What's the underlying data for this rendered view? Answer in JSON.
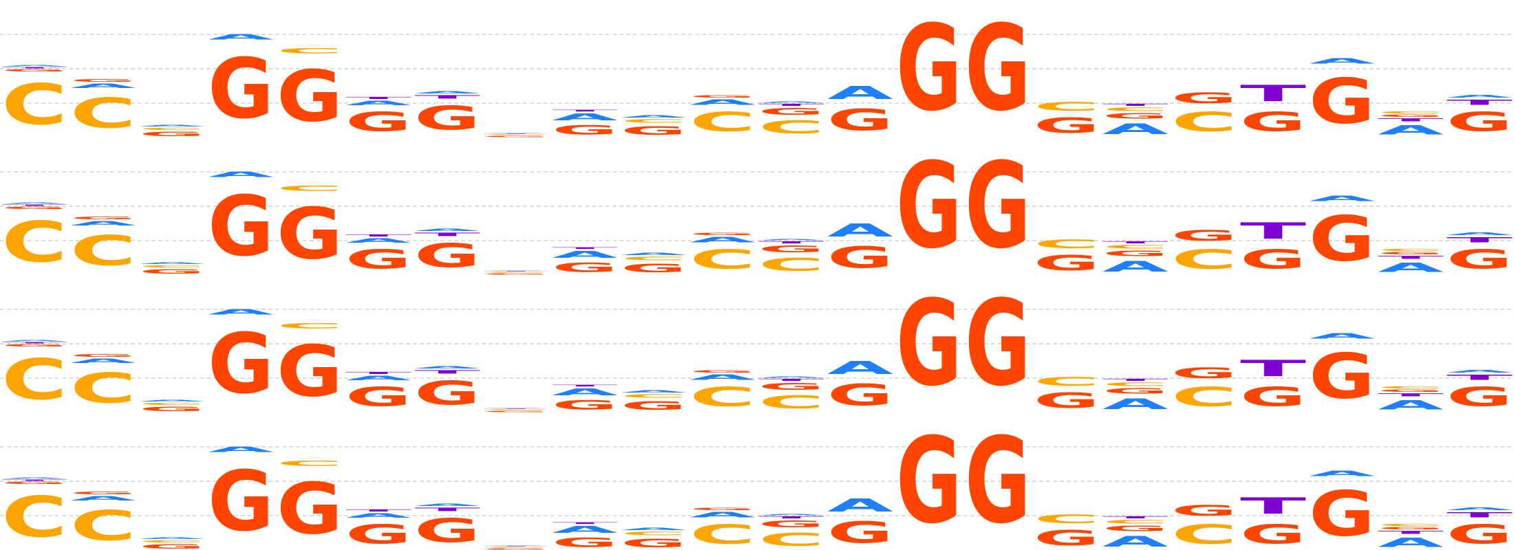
{
  "colors": {
    "A": "#1E7FFF",
    "C": "#FFA500",
    "G": "#FF4500",
    "T": "#7F00D4",
    "gridline": "#bbbbbb"
  },
  "logo_rows": 4,
  "chart_data": {
    "type": "sequence-logo",
    "title": "",
    "xlabel": "",
    "ylabel": "",
    "ylim": [
      0,
      2
    ],
    "grid": true,
    "positions": [
      [
        {
          "base": "C",
          "bits": 0.95
        },
        {
          "base": "G",
          "bits": 0.05
        },
        {
          "base": "T",
          "bits": 0.03
        },
        {
          "base": "A",
          "bits": 0.03
        }
      ],
      [
        {
          "base": "C",
          "bits": 0.7
        },
        {
          "base": "A",
          "bits": 0.1
        },
        {
          "base": "G",
          "bits": 0.06
        }
      ],
      [
        {
          "base": "G",
          "bits": 0.1
        },
        {
          "base": "C",
          "bits": 0.05
        },
        {
          "base": "A",
          "bits": 0.04
        }
      ],
      [
        {
          "base": "G",
          "bits": 1.4
        },
        {
          "base": "A",
          "bits": 0.12
        }
      ],
      [
        {
          "base": "G",
          "bits": 1.2
        },
        {
          "base": "C",
          "bits": 0.12
        }
      ],
      [
        {
          "base": "G",
          "bits": 0.45
        },
        {
          "base": "A",
          "bits": 0.1
        },
        {
          "base": "T",
          "bits": 0.05
        }
      ],
      [
        {
          "base": "G",
          "bits": 0.55
        },
        {
          "base": "T",
          "bits": 0.08
        },
        {
          "base": "A",
          "bits": 0.05
        }
      ],
      [
        {
          "base": "G",
          "bits": 0.03
        },
        {
          "base": "C",
          "bits": 0.02
        },
        {
          "base": "T",
          "bits": 0.01
        },
        {
          "base": "A",
          "bits": 0.01
        }
      ],
      [
        {
          "base": "G",
          "bits": 0.22
        },
        {
          "base": "A",
          "bits": 0.15
        },
        {
          "base": "T",
          "bits": 0.04
        }
      ],
      [
        {
          "base": "G",
          "bits": 0.2
        },
        {
          "base": "C",
          "bits": 0.08
        },
        {
          "base": "A",
          "bits": 0.05
        }
      ],
      [
        {
          "base": "C",
          "bits": 0.45
        },
        {
          "base": "A",
          "bits": 0.12
        },
        {
          "base": "G",
          "bits": 0.05
        }
      ],
      [
        {
          "base": "C",
          "bits": 0.3
        },
        {
          "base": "G",
          "bits": 0.15
        },
        {
          "base": "T",
          "bits": 0.05
        },
        {
          "base": "A",
          "bits": 0.03
        }
      ],
      [
        {
          "base": "G",
          "bits": 0.5
        },
        {
          "base": "A",
          "bits": 0.3
        }
      ],
      [
        {
          "base": "G",
          "bits": 2.0
        }
      ],
      [
        {
          "base": "G",
          "bits": 2.0
        }
      ],
      [
        {
          "base": "G",
          "bits": 0.35
        },
        {
          "base": "C",
          "bits": 0.2
        }
      ],
      [
        {
          "base": "A",
          "bits": 0.25
        },
        {
          "base": "G",
          "bits": 0.12
        },
        {
          "base": "C",
          "bits": 0.08
        },
        {
          "base": "T",
          "bits": 0.05
        }
      ],
      [
        {
          "base": "C",
          "bits": 0.45
        },
        {
          "base": "G",
          "bits": 0.25
        }
      ],
      [
        {
          "base": "G",
          "bits": 0.45
        },
        {
          "base": "T",
          "bits": 0.38
        }
      ],
      [
        {
          "base": "G",
          "bits": 1.05
        },
        {
          "base": "A",
          "bits": 0.12
        }
      ],
      [
        {
          "base": "A",
          "bits": 0.22
        },
        {
          "base": "T",
          "bits": 0.07
        },
        {
          "base": "G",
          "bits": 0.05
        },
        {
          "base": "C",
          "bits": 0.05
        }
      ],
      [
        {
          "base": "G",
          "bits": 0.45
        },
        {
          "base": "T",
          "bits": 0.12
        },
        {
          "base": "A",
          "bits": 0.06
        }
      ]
    ]
  }
}
